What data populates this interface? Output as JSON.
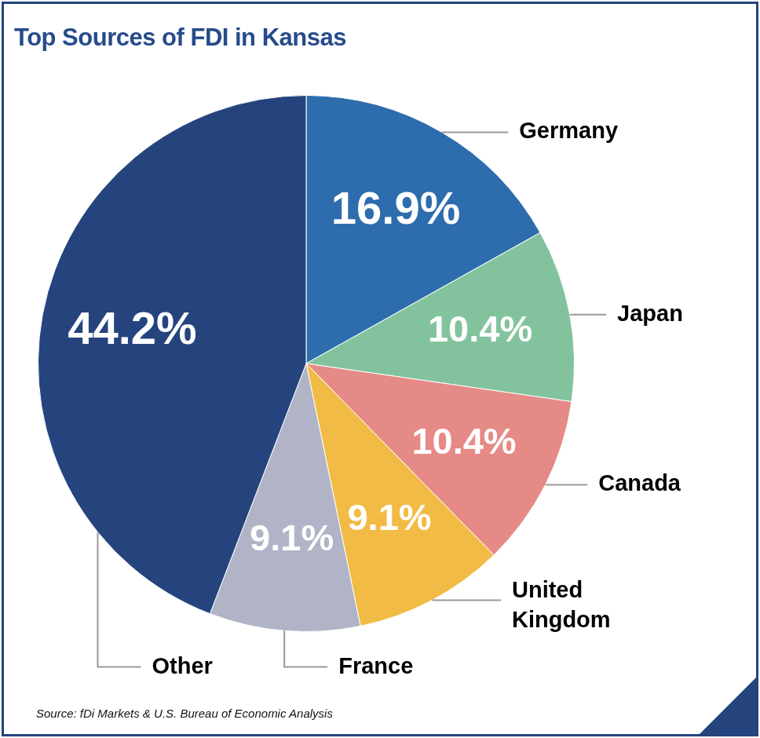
{
  "chart_data": {
    "type": "pie",
    "title": "Top Sources of FDI in Kansas",
    "categories": [
      "Germany",
      "Japan",
      "Canada",
      "United Kingdom",
      "France",
      "Other"
    ],
    "values": [
      16.9,
      10.4,
      10.4,
      9.1,
      9.1,
      44.2
    ],
    "value_labels": [
      "16.9%",
      "10.4%",
      "10.4%",
      "9.1%",
      "9.1%",
      "44.2%"
    ],
    "colors": [
      "#2e6dad",
      "#82c39e",
      "#e58a86",
      "#f2bb45",
      "#b1b4c6",
      "#25447e"
    ],
    "data_labels": true,
    "source": "Source: fDi Markets & U.S. Bureau of Economic Analysis"
  }
}
